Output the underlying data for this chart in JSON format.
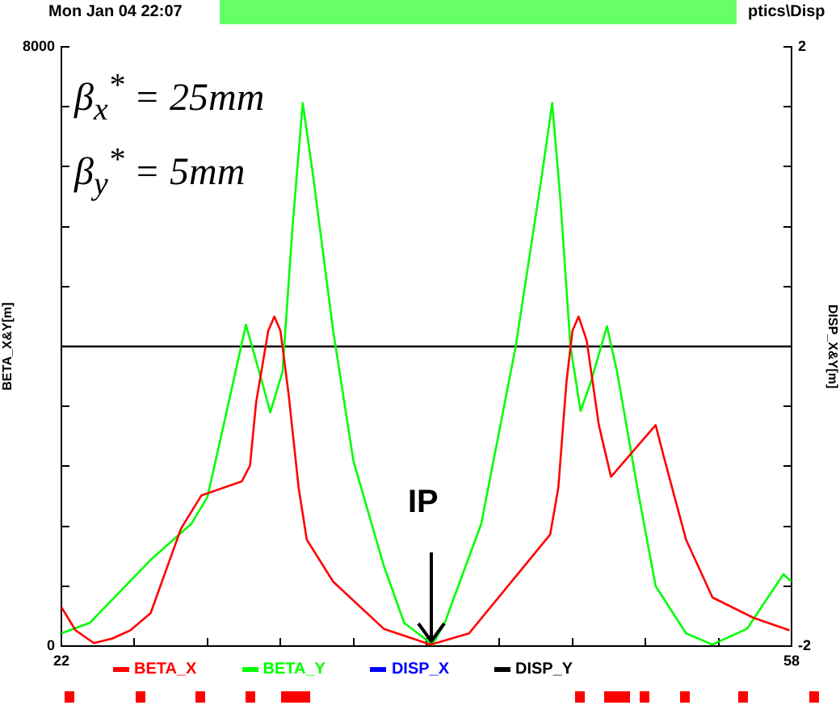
{
  "chart_data": {
    "type": "line",
    "ylabel": "BETA_X&Y[m]",
    "y2label": "DISP_X&Y[m]",
    "annotations": [
      "Mon Jan 04 22:07",
      "ptics\\Disp",
      "β$_{x}$$^{*}$ = 25mm",
      "β$_{y}$$^{*}$ = 5mm",
      {
        "text": "IP",
        "x": 40.2,
        "y": 0
      }
    ],
    "x": [
      22,
      58
    ],
    "xlim": [
      22,
      58
    ],
    "xticks": [
      22,
      {
        "value": 25.6,
        "label": null
      },
      {
        "value": 29.2,
        "label": null
      },
      {
        "value": 32.8,
        "label": null
      },
      {
        "value": 36.4,
        "label": null
      },
      {
        "value": 40,
        "label": null
      },
      {
        "value": 43.6,
        "label": null
      },
      {
        "value": 47.2,
        "label": null
      },
      {
        "value": 50.8,
        "label": null
      },
      {
        "value": 54.4,
        "label": null
      },
      58
    ],
    "ylim": [
      0,
      8000
    ],
    "yticks": [
      0,
      {
        "value": 800,
        "label": null
      },
      {
        "value": 1600,
        "label": null
      },
      {
        "value": 2400,
        "label": null
      },
      {
        "value": 3200,
        "label": null
      },
      {
        "value": 4000,
        "label": null
      },
      {
        "value": 4800,
        "label": null
      },
      {
        "value": 5600,
        "label": null
      },
      {
        "value": 6400,
        "label": null
      },
      {
        "value": 7200,
        "label": null
      },
      8000
    ],
    "y2lim": [
      -2,
      2
    ],
    "y2ticks": [
      -2,
      {
        "value": -1.6,
        "label": null
      },
      {
        "value": -1.2,
        "label": null
      },
      {
        "value": -0.8,
        "label": null
      },
      {
        "value": -0.4,
        "label": null
      },
      {
        "value": 0,
        "label": null
      },
      {
        "value": 0.4,
        "label": null
      },
      {
        "value": 0.8,
        "label": null
      },
      {
        "value": 1.2,
        "label": null
      },
      {
        "value": 1.6,
        "label": null
      },
      2
    ],
    "grid": false,
    "legend": "bottom",
    "marker": "none",
    "line_style": "solid",
    "series": [
      {
        "name": "BETA_X",
        "color": "#ff0000",
        "x": [
          22,
          22.7,
          23.6,
          24.5,
          25.4,
          26.4,
          27.9,
          28.9,
          30.9,
          31.3,
          31.6,
          32.2,
          32.5,
          32.8,
          33.2,
          33.7,
          34.1,
          35.4,
          37.9,
          40.2,
          42.1,
          46.1,
          46.5,
          46.9,
          47.2,
          47.5,
          47.9,
          48.5,
          49.1,
          51.3,
          51.7,
          52.8,
          54.1,
          56.1,
          57.9
        ],
        "values": [
          520,
          210,
          40,
          100,
          210,
          440,
          1570,
          2010,
          2200,
          2410,
          3250,
          4210,
          4400,
          4210,
          3370,
          2110,
          1420,
          860,
          230,
          20,
          170,
          1490,
          2110,
          3520,
          4210,
          4400,
          4080,
          2950,
          2260,
          2950,
          2530,
          1420,
          650,
          380,
          210
        ]
      },
      {
        "name": "BETA_Y",
        "color": "#00ff00",
        "x": [
          22,
          23.4,
          26.4,
          28.4,
          29.2,
          29.9,
          31.1,
          31.9,
          32.3,
          32.9,
          33.4,
          33.9,
          34.4,
          35.4,
          36.4,
          37.9,
          38.9,
          40.3,
          40.9,
          42.7,
          44.4,
          45.7,
          46.2,
          46.6,
          47.1,
          47.6,
          48.1,
          48.9,
          49.4,
          50.4,
          51.3,
          52.8,
          54.1,
          55.8,
          57.6,
          58
        ],
        "values": [
          170,
          310,
          1150,
          1630,
          1990,
          2830,
          4290,
          3520,
          3120,
          3660,
          5610,
          7250,
          6300,
          4210,
          2470,
          1070,
          310,
          20,
          310,
          1630,
          4000,
          6300,
          7250,
          5970,
          4000,
          3140,
          3520,
          4270,
          3660,
          2110,
          800,
          170,
          20,
          230,
          960,
          860
        ]
      },
      {
        "name": "DISP_X",
        "color": "#0000ff",
        "axis": "y2",
        "values": [
          null,
          null
        ]
      },
      {
        "name": "DISP_Y",
        "color": "#000000",
        "axis": "y2",
        "values": [
          0,
          0
        ]
      }
    ]
  }
}
